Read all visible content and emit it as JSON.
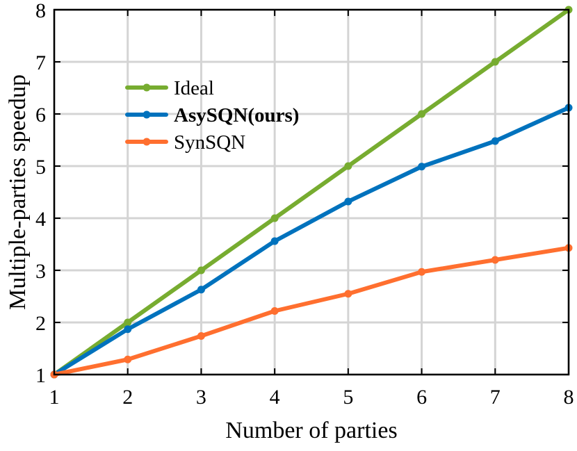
{
  "chart_data": {
    "type": "line",
    "title": "",
    "xlabel": "Number of parties",
    "ylabel": "Multiple-parties speedup",
    "xlim": [
      1,
      8
    ],
    "ylim": [
      1,
      8
    ],
    "x_ticks": [
      1,
      2,
      3,
      4,
      5,
      6,
      7,
      8
    ],
    "y_ticks": [
      1,
      2,
      3,
      4,
      5,
      6,
      7,
      8
    ],
    "x": [
      1,
      2,
      3,
      4,
      5,
      6,
      7,
      8
    ],
    "grid": true,
    "legend_position": "top-left",
    "series": [
      {
        "name": "Ideal",
        "color": "#77AC30",
        "values": [
          1,
          2,
          3,
          4,
          5,
          6,
          7,
          8
        ]
      },
      {
        "name": "AsySQN(ours)",
        "color": "#0072BD",
        "bold": true,
        "values": [
          1,
          1.87,
          2.63,
          3.56,
          4.32,
          4.99,
          5.48,
          6.12
        ]
      },
      {
        "name": "SynSQN",
        "color": "#FF6F2F",
        "values": [
          1,
          1.29,
          1.74,
          2.22,
          2.55,
          2.97,
          3.2,
          3.43
        ]
      }
    ]
  }
}
